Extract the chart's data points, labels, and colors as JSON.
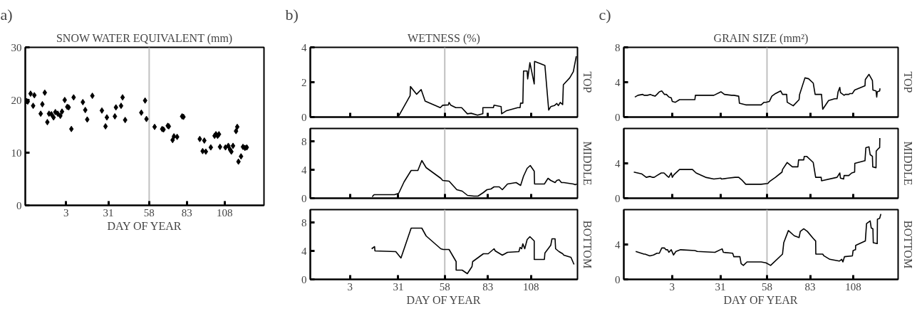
{
  "chart_data": [
    {
      "type": "scatter",
      "title": "SNOW WATER EQUIVALENT (mm)",
      "xlabel": "DAY OF YEAR",
      "annotations": [
        "a)"
      ],
      "marker": "diamond",
      "xlim": [
        -24,
        134
      ],
      "ylim": [
        0,
        30
      ],
      "xticks": [
        3,
        31,
        58,
        83,
        108
      ],
      "yticks": [
        0,
        10,
        20,
        30
      ],
      "ref_lines": [
        {
          "axis": "x",
          "value": 58,
          "color": "#c0c0c0"
        }
      ],
      "x": [
        -23.2,
        -22.4,
        -20.5,
        -18.8,
        -18.0,
        -13.8,
        -12.7,
        -11.1,
        -9.4,
        -8.3,
        -6.7,
        -5.3,
        -4.1,
        -2.5,
        -0.8,
        0.3,
        2.1,
        3.8,
        4.7,
        6.5,
        8.0,
        14.1,
        15.7,
        17.0,
        20.4,
        26.7,
        29.1,
        30.0,
        35.3,
        36.0,
        39.4,
        40.4,
        42.1,
        52.8,
        55.3,
        56.2,
        61.6,
        66.6,
        67.5,
        70.3,
        71.0,
        73.5,
        74.4,
        76.5,
        79.8,
        80.7,
        91.5,
        93.4,
        94.5,
        95.5,
        98.8,
        101.3,
        102.2,
        103.3,
        104.2,
        104.9,
        108.5,
        110.4,
        111.5,
        112.4,
        113.5,
        115.5,
        116.3,
        117.1,
        118.8,
        120.1,
        121.4,
        122.6
      ],
      "series": [
        {
          "color": "#000000",
          "values": [
            19.8,
            19.7,
            21.2,
            18.9,
            20.9,
            17.4,
            19.2,
            21.4,
            15.8,
            17.4,
            17.3,
            16.7,
            17.7,
            17.4,
            17.0,
            17.8,
            20.0,
            18.7,
            18.6,
            14.5,
            20.5,
            19.6,
            18.1,
            16.3,
            20.8,
            18.0,
            15.0,
            16.7,
            16.9,
            18.6,
            18.9,
            20.5,
            16.2,
            17.6,
            19.9,
            16.4,
            14.9,
            14.5,
            14.4,
            15.1,
            15.0,
            12.4,
            13.1,
            13.0,
            16.9,
            16.8,
            12.6,
            10.3,
            12.3,
            10.2,
            11.0,
            13.2,
            13.5,
            13.2,
            13.5,
            11.1,
            11.0,
            11.3,
            10.6,
            10.2,
            11.3,
            14.1,
            14.9,
            8.3,
            9.3,
            11.1,
            10.9,
            11.0
          ]
        }
      ]
    },
    {
      "type": "line",
      "title": "WETNESS (%)",
      "annotations": [
        "b)",
        "TOP"
      ],
      "tick_labels": "y",
      "xlim": [
        -20,
        135
      ],
      "ylim": [
        0,
        4
      ],
      "xticks": [
        3,
        31,
        58,
        83,
        108
      ],
      "yticks": [
        0,
        2,
        4
      ],
      "ref_lines": [
        {
          "axis": "x",
          "value": 58,
          "color": "#c0c0c0"
        }
      ],
      "x": [
        31.3,
        37.9,
        38.1,
        41.7,
        44.3,
        46.6,
        55.4,
        56.8,
        60.1,
        60.5,
        61.5,
        64.4,
        67.8,
        71.1,
        73.3,
        77.0,
        80.1,
        80.1,
        86.2,
        86.6,
        90.7,
        91.0,
        93.9,
        100.3,
        101.7,
        102.0,
        103.3,
        103.7,
        105.8,
        106.1,
        107.4,
        109.9,
        110.1,
        116.1,
        118.3,
        119.5,
        121.6,
        123.0,
        123.9,
        125.0,
        126.4,
        126.8,
        130.5,
        132.6,
        134.3
      ],
      "series": [
        {
          "color": "#000000",
          "values": [
            0.07,
            1.23,
            1.75,
            1.31,
            1.58,
            0.92,
            0.54,
            0.68,
            0.7,
            0.84,
            0.68,
            0.54,
            0.54,
            0.19,
            0.22,
            0.11,
            0.19,
            0.54,
            0.54,
            0.68,
            0.6,
            0.19,
            0.37,
            0.54,
            0.54,
            0.8,
            0.8,
            2.64,
            2.64,
            2.19,
            3.12,
            1.9,
            3.19,
            2.96,
            0.4,
            0.6,
            0.66,
            0.78,
            0.66,
            0.84,
            0.72,
            1.86,
            2.25,
            2.61,
            3.49
          ]
        }
      ]
    },
    {
      "type": "line",
      "annotations": [
        "MIDDLE"
      ],
      "tick_labels": "y",
      "xlim": [
        -20,
        135
      ],
      "ylim": [
        0,
        9.8
      ],
      "xticks": [
        3,
        31,
        58,
        83,
        108
      ],
      "yticks": [
        0,
        4,
        8
      ],
      "ref_lines": [
        {
          "axis": "x",
          "value": 58,
          "color": "#c0c0c0"
        }
      ],
      "x": [
        15.9,
        17.0,
        28.9,
        31.3,
        34.4,
        38.5,
        42.4,
        44.7,
        47.2,
        55.7,
        56.8,
        60.5,
        65.0,
        68.1,
        71.2,
        74.9,
        77.3,
        80.4,
        82.5,
        84.8,
        86.6,
        89.6,
        91.4,
        94.4,
        99.4,
        102.0,
        103.7,
        105.8,
        107.6,
        109.9,
        110.1,
        115.8,
        117.9,
        119.5,
        122.0,
        123.0,
        124.3,
        125.7,
        127.1,
        129.8,
        132.6,
        133.7,
        134.6
      ],
      "series": [
        {
          "color": "#000000",
          "values": [
            0.2,
            0.5,
            0.5,
            0.7,
            2.3,
            3.9,
            3.9,
            5.3,
            4.3,
            2.8,
            2.5,
            2.4,
            1.2,
            1.0,
            0.4,
            0.3,
            0.3,
            0.8,
            1.2,
            1.3,
            1.6,
            1.6,
            1.2,
            2.0,
            2.2,
            1.8,
            3.1,
            4.2,
            4.6,
            3.8,
            2.0,
            2.0,
            2.8,
            2.5,
            2.2,
            2.5,
            2.6,
            2.2,
            2.2,
            2.1,
            2.0,
            1.9,
            2.0
          ]
        }
      ]
    },
    {
      "type": "line",
      "xlabel": "DAY OF YEAR",
      "annotations": [
        "BOTTOM"
      ],
      "xlim": [
        -20,
        135
      ],
      "ylim": [
        0,
        9.8
      ],
      "xticks": [
        3,
        31,
        58,
        83,
        108
      ],
      "yticks": [
        0,
        4,
        8
      ],
      "ref_lines": [
        {
          "axis": "x",
          "value": 58,
          "color": "#c0c0c0"
        }
      ],
      "x": [
        15.6,
        17.3,
        17.5,
        29.6,
        32.6,
        38.5,
        44.7,
        47.2,
        55.7,
        57.1,
        60.5,
        64.6,
        64.6,
        68.1,
        71.1,
        73.8,
        74.2,
        80.4,
        83.2,
        86.6,
        87.3,
        91.4,
        94.4,
        101.0,
        101.7,
        102.6,
        103.3,
        104.4,
        105.8,
        107.4,
        109.9,
        109.9,
        115.8,
        116.1,
        119.5,
        120.2,
        122.0,
        122.3,
        124.3,
        126.4,
        127.1,
        131.2,
        133.0
      ],
      "series": [
        {
          "color": "#000000",
          "values": [
            4.3,
            4.6,
            4.0,
            3.9,
            3.0,
            7.2,
            7.2,
            6.1,
            4.3,
            4.2,
            4.2,
            2.5,
            1.3,
            1.3,
            0.8,
            1.8,
            2.5,
            3.6,
            3.6,
            4.3,
            4.0,
            3.4,
            3.8,
            3.9,
            4.5,
            4.3,
            5.0,
            4.3,
            5.6,
            6.0,
            5.4,
            2.8,
            2.8,
            3.7,
            4.8,
            5.7,
            5.7,
            4.3,
            3.9,
            3.6,
            3.4,
            3.1,
            2.1
          ]
        }
      ]
    },
    {
      "type": "line",
      "title": "GRAIN SIZE (mm²)",
      "annotations": [
        "c)",
        "TOP"
      ],
      "tick_labels": "y",
      "xlim": [
        -25,
        134
      ],
      "ylim": [
        0,
        8
      ],
      "xticks": [
        3,
        31,
        58,
        83,
        108
      ],
      "yticks": [
        0,
        4,
        8
      ],
      "ref_lines": [
        {
          "axis": "x",
          "value": 58,
          "color": "#c0c0c0"
        }
      ],
      "x": [
        -18.6,
        -16.8,
        -14.0,
        -13.3,
        -11.3,
        -9.6,
        -8.5,
        -6.9,
        -5.8,
        -4.4,
        -3.0,
        -1.4,
        -0.3,
        1.1,
        2.5,
        3.1,
        4.9,
        7.3,
        9.3,
        12.1,
        16.2,
        16.5,
        21.7,
        27.2,
        31.3,
        33.3,
        37.5,
        38.8,
        41.6,
        42.0,
        45.7,
        49.1,
        54.6,
        56.3,
        57.4,
        59.4,
        60.8,
        62.9,
        65.9,
        67.0,
        69.4,
        69.7,
        73.2,
        76.6,
        76.9,
        80.0,
        82.1,
        84.8,
        85.9,
        89.6,
        90.3,
        93.7,
        97.2,
        98.6,
        99.2,
        100.2,
        100.6,
        102.7,
        103.4,
        105.4,
        106.1,
        107.5,
        108.8,
        114.8,
        115.0,
        117.1,
        119.1,
        119.4,
        121.2,
        121.6,
        121.9,
        123.3,
        123.5
      ],
      "series": [
        {
          "color": "#000000",
          "values": [
            2.3,
            2.5,
            2.6,
            2.5,
            2.5,
            2.6,
            2.5,
            2.4,
            2.6,
            2.9,
            3.0,
            2.6,
            2.6,
            2.3,
            2.2,
            1.8,
            1.7,
            2.0,
            2.0,
            2.0,
            2.0,
            2.5,
            2.5,
            2.5,
            2.9,
            2.6,
            2.5,
            2.5,
            2.4,
            1.6,
            1.4,
            1.4,
            1.4,
            1.7,
            1.7,
            1.8,
            2.4,
            2.7,
            3.0,
            2.6,
            2.6,
            1.7,
            1.3,
            2.0,
            2.6,
            4.5,
            4.4,
            3.9,
            2.6,
            2.6,
            0.9,
            1.9,
            2.1,
            2.1,
            2.9,
            3.4,
            2.8,
            2.5,
            2.6,
            2.6,
            2.7,
            2.7,
            3.1,
            3.6,
            4.3,
            4.9,
            4.2,
            3.1,
            3.0,
            2.3,
            2.9,
            3.0,
            3.3
          ]
        }
      ]
    },
    {
      "type": "line",
      "annotations": [
        "MIDDLE"
      ],
      "tick_labels": "y",
      "xlim": [
        -25,
        134
      ],
      "ylim": [
        0,
        8
      ],
      "xticks": [
        3,
        31,
        58,
        83,
        108
      ],
      "yticks": [
        0,
        4
      ],
      "ref_lines": [
        {
          "axis": "x",
          "value": 58,
          "color": "#c0c0c0"
        }
      ],
      "x": [
        -19.2,
        -14.7,
        -12.0,
        -9.9,
        -8.5,
        -7.4,
        -5.8,
        -3.3,
        -1.7,
        0.4,
        1.1,
        2.5,
        3.1,
        4.1,
        7.3,
        14.8,
        16.9,
        22.4,
        27.2,
        31.3,
        31.6,
        35.4,
        39.5,
        41.6,
        43.4,
        45.7,
        54.6,
        58.5,
        59.4,
        62.9,
        66.7,
        67.0,
        69.7,
        72.7,
        75.9,
        76.3,
        79.3,
        79.6,
        81.0,
        84.8,
        86.2,
        89.4,
        89.6,
        98.6,
        100.2,
        100.6,
        102.4,
        102.7,
        105.4,
        107.1,
        108.8,
        108.9,
        114.8,
        115.3,
        117.1,
        117.8,
        119.1,
        119.3,
        121.2,
        121.3,
        122.6,
        123.3,
        123.4
      ],
      "series": [
        {
          "color": "#000000",
          "values": [
            3.0,
            2.8,
            2.4,
            2.5,
            2.4,
            2.4,
            2.6,
            2.9,
            2.9,
            2.5,
            2.4,
            2.9,
            2.4,
            2.7,
            3.3,
            3.3,
            2.9,
            2.4,
            2.2,
            2.3,
            2.2,
            2.3,
            2.4,
            2.4,
            2.1,
            1.6,
            1.6,
            1.7,
            1.9,
            2.4,
            3.0,
            3.3,
            4.1,
            3.6,
            3.6,
            4.4,
            4.4,
            4.8,
            4.8,
            4.1,
            2.4,
            2.4,
            2.0,
            2.4,
            2.9,
            2.3,
            2.2,
            2.6,
            2.6,
            2.9,
            3.0,
            4.0,
            4.3,
            5.8,
            5.9,
            5.0,
            4.8,
            3.6,
            3.5,
            5.4,
            5.7,
            5.8,
            6.9
          ]
        }
      ]
    },
    {
      "type": "line",
      "xlabel": "DAY OF YEAR",
      "annotations": [
        "BOTTOM"
      ],
      "xlim": [
        -25,
        134
      ],
      "ylim": [
        0,
        8
      ],
      "xticks": [
        3,
        31,
        58,
        83,
        108
      ],
      "yticks": [
        0,
        4
      ],
      "ref_lines": [
        {
          "axis": "x",
          "value": 58,
          "color": "#c0c0c0"
        }
      ],
      "x": [
        -18.1,
        -13.3,
        -12.7,
        -9.9,
        -7.8,
        -5.8,
        -4.4,
        -3.0,
        -1.4,
        -0.6,
        0.4,
        1.1,
        2.5,
        3.8,
        5.2,
        7.9,
        16.2,
        17.6,
        27.8,
        32.0,
        32.7,
        38.1,
        38.8,
        42.3,
        43.0,
        44.3,
        46.4,
        54.6,
        57.4,
        60.1,
        67.0,
        67.7,
        70.4,
        73.8,
        76.6,
        77.3,
        79.3,
        81.4,
        84.8,
        86.2,
        86.3,
        90.3,
        91.0,
        94.4,
        99.9,
        101.3,
        102.0,
        102.9,
        107.5,
        107.9,
        109.3,
        109.4,
        115.0,
        115.7,
        117.8,
        118.4,
        119.4,
        119.6,
        121.9,
        122.0,
        123.3,
        124.0
      ],
      "series": [
        {
          "color": "#000000",
          "values": [
            3.2,
            2.9,
            2.9,
            2.7,
            2.8,
            3.0,
            3.0,
            3.6,
            3.6,
            3.4,
            3.4,
            3.1,
            3.4,
            2.8,
            3.2,
            3.4,
            3.3,
            3.2,
            3.1,
            3.5,
            3.1,
            3.0,
            2.6,
            2.6,
            1.8,
            1.6,
            2.0,
            2.0,
            1.9,
            1.6,
            2.9,
            4.2,
            5.6,
            5.0,
            4.8,
            5.5,
            5.8,
            5.5,
            4.7,
            4.4,
            2.9,
            2.9,
            2.7,
            2.3,
            2.1,
            2.3,
            2.0,
            2.6,
            2.7,
            3.3,
            3.4,
            3.9,
            4.4,
            6.4,
            6.7,
            5.9,
            5.8,
            4.2,
            4.1,
            6.9,
            7.0,
            7.5
          ]
        }
      ]
    }
  ]
}
